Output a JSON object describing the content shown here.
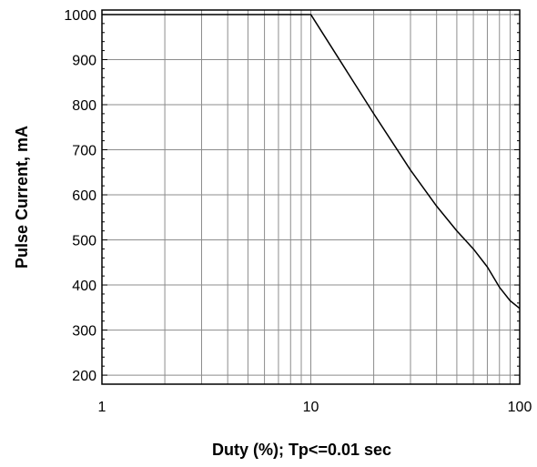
{
  "chart_data": {
    "type": "line",
    "title": "",
    "xlabel": "Duty (%); Tp<=0.01 sec",
    "ylabel": "Pulse Current, mA",
    "x_scale": "log",
    "xlim": [
      1,
      100
    ],
    "ylim": [
      180,
      1010
    ],
    "grid": true,
    "legend": "none",
    "x_ticks": [
      1,
      10,
      100
    ],
    "x_tick_labels": [
      "1",
      "10",
      "100"
    ],
    "y_ticks": [
      200,
      300,
      400,
      500,
      600,
      700,
      800,
      900,
      1000
    ],
    "y_tick_labels": [
      "200",
      "300",
      "400",
      "500",
      "600",
      "700",
      "800",
      "900",
      "1000"
    ],
    "series": [
      {
        "x": [
          1,
          10,
          20,
          30,
          40,
          50,
          60,
          70,
          80,
          90,
          100
        ],
        "y": [
          1000,
          1000,
          780,
          655,
          575,
          520,
          480,
          440,
          395,
          365,
          348
        ]
      }
    ],
    "colors": {
      "line": "#000000",
      "grid": "#8c8c8c",
      "axis": "#000000"
    }
  }
}
